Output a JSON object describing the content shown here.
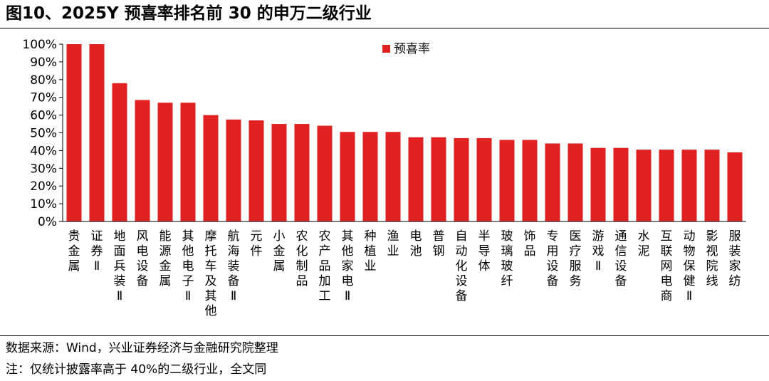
{
  "title": "图10、2025Y 预喜率排名前 30 的申万二级行业",
  "source_note": "数据来源：Wind，兴业证券经济与金融研究院整理",
  "footnote": "注：仅统计披露率高于 40%的二级行业，全文同",
  "colors": {
    "bar": "#E02222",
    "axis": "#000000"
  },
  "chart_data": {
    "type": "bar",
    "categories": [
      "贵金属",
      "证券Ⅱ",
      "地面兵装Ⅱ",
      "风电设备",
      "能源金属",
      "其他电子Ⅱ",
      "摩托车及其他",
      "航海装备Ⅱ",
      "元件",
      "小金属",
      "农化制品",
      "农产品加工",
      "其他家电Ⅱ",
      "种植业",
      "渔业",
      "电池",
      "普钢",
      "自动化设备",
      "半导体",
      "玻璃玻纤",
      "饰品",
      "专用设备",
      "医疗服务",
      "游戏Ⅱ",
      "通信设备",
      "水泥",
      "互联网电商",
      "动物保健Ⅱ",
      "影视院线",
      "服装家纺"
    ],
    "series": [
      {
        "name": "预喜率",
        "values": [
          100,
          100,
          78,
          68.5,
          67,
          67,
          60,
          57.5,
          57,
          55,
          55,
          54,
          50.5,
          50.5,
          50.5,
          47.5,
          47.5,
          47,
          47,
          46,
          46,
          44,
          44,
          41.5,
          41.5,
          40.5,
          40.5,
          40.5,
          40.5,
          39
        ]
      }
    ],
    "ylim": [
      0,
      100
    ],
    "yticks": [
      "0%",
      "10%",
      "20%",
      "30%",
      "40%",
      "50%",
      "60%",
      "70%",
      "80%",
      "90%",
      "100%"
    ],
    "xlabel": "",
    "ylabel": "",
    "grid": false,
    "legend_position": "top-center"
  }
}
